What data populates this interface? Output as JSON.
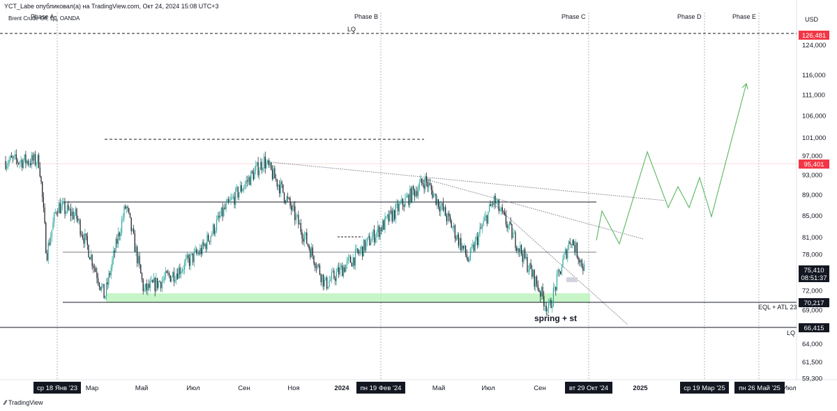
{
  "header": {
    "published": "YCT_Labe опубликовал(а) на TradingView.com, Окт 24, 2024 15:08 UTC+3",
    "symbol": "Brent Crude Oil, 1Д, OANDA"
  },
  "currency": "USD",
  "phases": [
    "Phase A",
    "Phase B",
    "Phase C",
    "Phase D",
    "Phase E"
  ],
  "annotations": {
    "lq_top": "LQ",
    "lq_bottom": "LQ",
    "eql": "EQL + ATL 23",
    "spring": "spring + st"
  },
  "price_badges": [
    {
      "label": "126,481",
      "color": "#f23645"
    },
    {
      "label": "95,401",
      "color": "#f23645"
    },
    {
      "label": "75,410",
      "color": "#131722"
    },
    {
      "label": "08:51:37",
      "color": "#131722"
    },
    {
      "label": "70,217",
      "color": "#131722"
    },
    {
      "label": "66,415",
      "color": "#131722"
    }
  ],
  "brand": "TradingView",
  "chart_data": {
    "type": "line",
    "scale": "log",
    "y_ticks": [
      "124,000",
      "116,000",
      "111,000",
      "106,000",
      "101,000",
      "97,000",
      "93,000",
      "89,000",
      "85,000",
      "81,000",
      "78,000",
      "72,000",
      "69,000",
      "64,000",
      "61,500",
      "59,300"
    ],
    "x_ticks": [
      "Мар",
      "Май",
      "Июл",
      "Сен",
      "Ноя",
      "2024",
      "Май",
      "Июл",
      "Сен",
      "2025",
      "Июл"
    ],
    "x_highlight": [
      "ср 18 Янв '23",
      "пн 19 Фев '24",
      "вт 29 Окт '24",
      "ср 19 Мар '25",
      "пн 26 Май '25"
    ],
    "levels": {
      "lq_top": 126.481,
      "range_high": 95.401,
      "range_top": 87.5,
      "range_mid": 78.5,
      "range_low": 70.217,
      "lq_bottom": 66.415,
      "last": 75.41
    },
    "price_path_approx": [
      [
        "2022-12-27",
        96
      ],
      [
        "2023-01-05",
        78
      ],
      [
        "2023-01-18",
        87
      ],
      [
        "2023-02-10",
        85
      ],
      [
        "2023-03-17",
        71
      ],
      [
        "2023-04-12",
        87
      ],
      [
        "2023-05-04",
        72
      ],
      [
        "2023-06-12",
        75
      ],
      [
        "2023-07-15",
        79
      ],
      [
        "2023-08-10",
        86
      ],
      [
        "2023-09-28",
        96
      ],
      [
        "2023-10-20",
        90
      ],
      [
        "2023-12-12",
        73
      ],
      [
        "2024-01-20",
        78
      ],
      [
        "2024-02-19",
        83
      ],
      [
        "2024-04-12",
        92
      ],
      [
        "2024-05-15",
        83
      ],
      [
        "2024-06-04",
        77
      ],
      [
        "2024-07-05",
        88
      ],
      [
        "2024-09-10",
        69
      ],
      [
        "2024-10-07",
        81
      ],
      [
        "2024-10-24",
        75.41
      ]
    ],
    "projection": [
      [
        "2024-11-01",
        80
      ],
      [
        "2024-11-15",
        86
      ],
      [
        "2024-12-10",
        79
      ],
      [
        "2025-01-15",
        98
      ],
      [
        "2025-02-05",
        86
      ],
      [
        "2025-02-20",
        91
      ],
      [
        "2025-03-05",
        86
      ],
      [
        "2025-03-19",
        93
      ],
      [
        "2025-04-01",
        85
      ],
      [
        "2025-05-20",
        114
      ]
    ]
  }
}
